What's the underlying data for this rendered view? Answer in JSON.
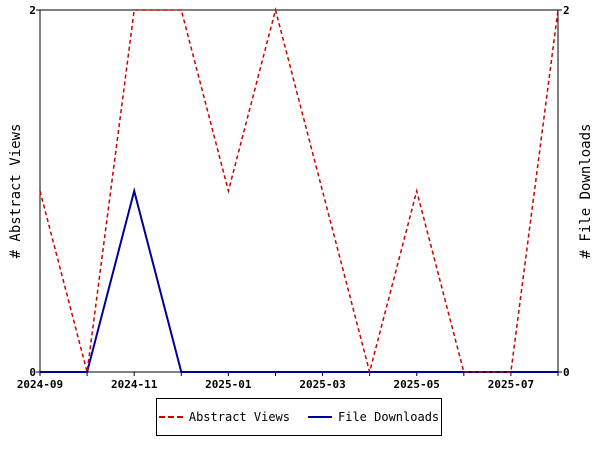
{
  "chart_data": {
    "type": "line",
    "x": [
      "2024-09",
      "2024-10",
      "2024-11",
      "2024-12",
      "2025-01",
      "2025-02",
      "2025-03",
      "2025-04",
      "2025-05",
      "2025-06",
      "2025-07",
      "2025-08"
    ],
    "x_tick_labels": [
      "2024-09",
      "2024-11",
      "2025-01",
      "2025-03",
      "2025-05",
      "2025-07"
    ],
    "series": [
      {
        "name": "Abstract Views",
        "values": [
          1,
          0,
          2,
          2,
          1,
          2,
          1,
          0,
          1,
          0,
          0,
          2
        ],
        "color": "#cc0000",
        "style": "dashed",
        "axis": "left"
      },
      {
        "name": "File Downloads",
        "values": [
          0,
          0,
          1,
          0,
          0,
          0,
          0,
          0,
          0,
          0,
          0,
          0
        ],
        "color": "#000099",
        "style": "solid",
        "axis": "right"
      }
    ],
    "ylabel_left": "# Abstract Views",
    "ylabel_right": "# File Downloads",
    "ylim_left": [
      0,
      2
    ],
    "ylim_right": [
      0,
      2
    ],
    "y_ticks_left": [
      "0",
      "2"
    ],
    "y_ticks_right": [
      "0",
      "2"
    ],
    "grid": false,
    "legend": "bottom"
  }
}
